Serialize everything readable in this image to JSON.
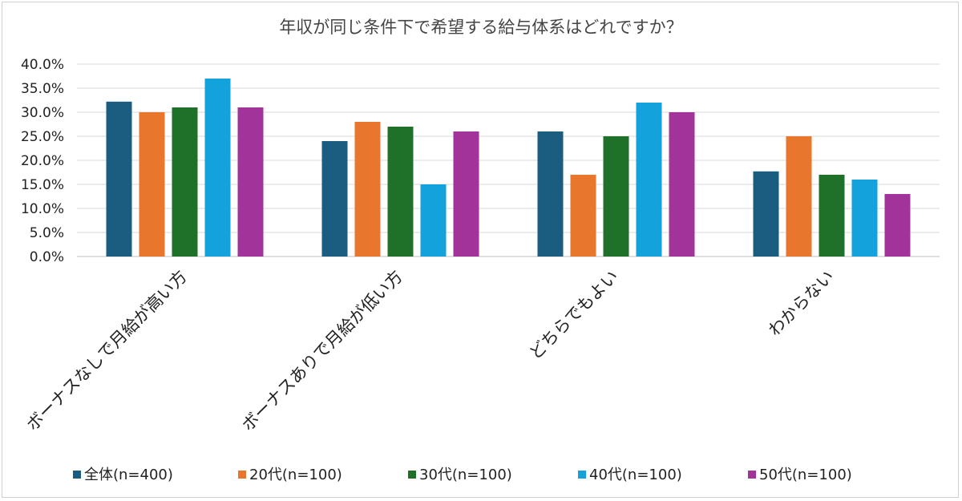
{
  "chart_data": {
    "type": "bar",
    "title": "年収が同じ条件下で希望する給与体系はどれですか？",
    "categories": [
      "ボーナスなしで月給が高い方",
      "ボーナスありで月給が低い方",
      "どちらでもよい",
      "わからない"
    ],
    "series": [
      {
        "name": "全体(n=400)",
        "color": "#1a5d80",
        "values": [
          32.2,
          24.0,
          26.0,
          17.7
        ]
      },
      {
        "name": "20代(n=100)",
        "color": "#e8762d",
        "values": [
          30.0,
          28.0,
          17.0,
          25.0
        ]
      },
      {
        "name": "30代(n=100)",
        "color": "#1f7029",
        "values": [
          31.0,
          27.0,
          25.0,
          17.0
        ]
      },
      {
        "name": "40代(n=100)",
        "color": "#13a2db",
        "values": [
          37.0,
          15.0,
          32.0,
          16.0
        ]
      },
      {
        "name": "50代(n=100)",
        "color": "#a2339b",
        "values": [
          31.0,
          26.0,
          30.0,
          13.0
        ]
      }
    ],
    "ylim": [
      0,
      40
    ],
    "ytick_step": 5,
    "ytick_labels": [
      "0.0%",
      "5.0%",
      "10.0%",
      "15.0%",
      "20.0%",
      "25.0%",
      "30.0%",
      "35.0%",
      "40.0%"
    ],
    "grid": true,
    "legend_position": "bottom",
    "xlabel": "",
    "ylabel": ""
  }
}
